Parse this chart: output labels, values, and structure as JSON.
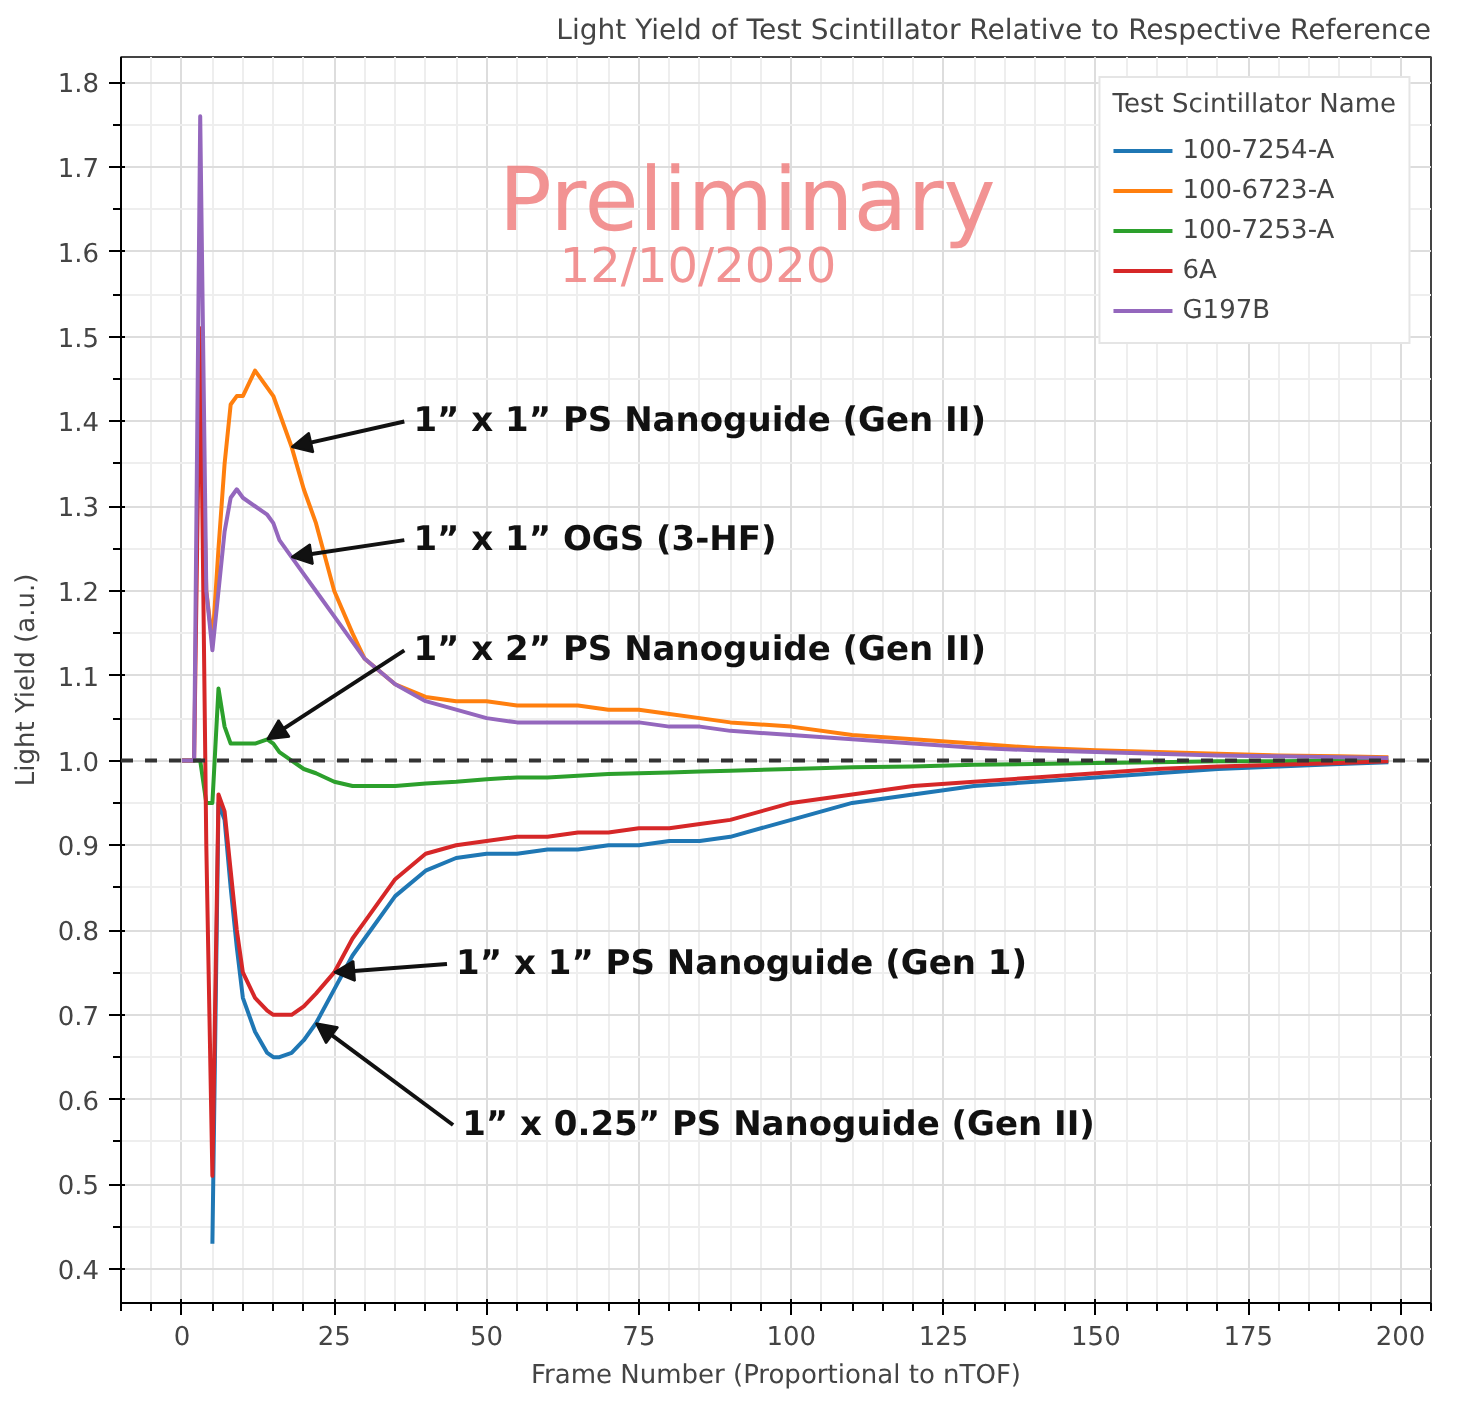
{
  "chart_data": {
    "type": "line",
    "title": "Light Yield of Test Scintillator Relative to Respective Reference",
    "xlabel": "Frame Number (Proportional to nTOF)",
    "ylabel": "Light Yield (a.u.)",
    "legend_title": "Test Scintillator Name",
    "legend": "top right",
    "grid": true,
    "x": [
      0,
      1,
      2,
      3,
      4,
      5,
      6,
      7,
      8,
      9,
      10,
      12,
      14,
      15,
      16,
      18,
      20,
      22,
      25,
      28,
      30,
      35,
      40,
      45,
      50,
      55,
      60,
      65,
      70,
      75,
      80,
      85,
      90,
      100,
      110,
      120,
      130,
      140,
      150,
      160,
      170,
      180,
      190,
      198
    ],
    "series": [
      {
        "name": "100-7254-A",
        "color": "#1f77b4",
        "values": [
          null,
          null,
          null,
          null,
          null,
          0.43,
          0.95,
          0.93,
          0.85,
          0.78,
          0.72,
          0.68,
          0.655,
          0.65,
          0.65,
          0.655,
          0.67,
          0.69,
          0.73,
          0.77,
          0.79,
          0.84,
          0.87,
          0.885,
          0.89,
          0.89,
          0.895,
          0.895,
          0.9,
          0.9,
          0.905,
          0.905,
          0.91,
          0.93,
          0.95,
          0.96,
          0.97,
          0.975,
          0.98,
          0.985,
          0.99,
          0.993,
          0.996,
          0.998
        ]
      },
      {
        "name": "100-6723-A",
        "color": "#ff7f0e",
        "values": [
          null,
          null,
          null,
          1.5,
          1.2,
          1.14,
          1.25,
          1.35,
          1.42,
          1.43,
          1.43,
          1.46,
          1.44,
          1.43,
          1.41,
          1.37,
          1.32,
          1.28,
          1.2,
          1.15,
          1.12,
          1.09,
          1.075,
          1.07,
          1.07,
          1.065,
          1.065,
          1.065,
          1.06,
          1.06,
          1.055,
          1.05,
          1.045,
          1.04,
          1.03,
          1.025,
          1.02,
          1.015,
          1.012,
          1.01,
          1.008,
          1.006,
          1.005,
          1.004
        ]
      },
      {
        "name": "100-7253-A",
        "color": "#2ca02c",
        "values": [
          1.0,
          1.0,
          1.0,
          1.0,
          0.95,
          0.95,
          1.085,
          1.04,
          1.02,
          1.02,
          1.02,
          1.02,
          1.025,
          1.02,
          1.01,
          1.0,
          0.99,
          0.985,
          0.975,
          0.97,
          0.97,
          0.97,
          0.973,
          0.975,
          0.978,
          0.98,
          0.98,
          0.982,
          0.984,
          0.985,
          0.986,
          0.987,
          0.988,
          0.99,
          0.992,
          0.993,
          0.995,
          0.996,
          0.997,
          0.998,
          0.999,
          0.999,
          1.0,
          1.0
        ]
      },
      {
        "name": "6A",
        "color": "#d62728",
        "values": [
          1.0,
          1.0,
          1.0,
          1.51,
          0.9,
          0.51,
          0.96,
          0.94,
          0.87,
          0.8,
          0.75,
          0.72,
          0.705,
          0.7,
          0.7,
          0.7,
          0.71,
          0.725,
          0.75,
          0.79,
          0.81,
          0.86,
          0.89,
          0.9,
          0.905,
          0.91,
          0.91,
          0.915,
          0.915,
          0.92,
          0.92,
          0.925,
          0.93,
          0.95,
          0.96,
          0.97,
          0.975,
          0.98,
          0.985,
          0.99,
          0.993,
          0.995,
          0.997,
          0.999
        ]
      },
      {
        "name": "G197B",
        "color": "#9467bd",
        "values": [
          1.0,
          1.0,
          1.0,
          1.76,
          1.2,
          1.13,
          1.2,
          1.27,
          1.31,
          1.32,
          1.31,
          1.3,
          1.29,
          1.28,
          1.26,
          1.24,
          1.22,
          1.2,
          1.17,
          1.14,
          1.12,
          1.09,
          1.07,
          1.06,
          1.05,
          1.045,
          1.045,
          1.045,
          1.045,
          1.045,
          1.04,
          1.04,
          1.035,
          1.03,
          1.025,
          1.02,
          1.015,
          1.012,
          1.01,
          1.008,
          1.006,
          1.005,
          1.004,
          1.003
        ]
      }
    ],
    "xlim": [
      -10,
      205
    ],
    "ylim": [
      0.36,
      1.83
    ],
    "xticks": [
      0,
      25,
      50,
      75,
      100,
      125,
      150,
      175,
      200
    ],
    "yticks": [
      {
        "value": 0.4,
        "label": "0.4"
      },
      {
        "value": 0.5,
        "label": "0.5"
      },
      {
        "value": 0.6,
        "label": "0.6"
      },
      {
        "value": 0.7,
        "label": "0.7"
      },
      {
        "value": 0.8,
        "label": "0.8"
      },
      {
        "value": 0.9,
        "label": "0.9"
      },
      {
        "value": 1.0,
        "label": "1.0"
      },
      {
        "value": 1.1,
        "label": "1.1"
      },
      {
        "value": 1.2,
        "label": "1.2"
      },
      {
        "value": 1.3,
        "label": "1.3"
      },
      {
        "value": 1.4,
        "label": "1.4"
      },
      {
        "value": 1.5,
        "label": "1.5"
      },
      {
        "value": 1.6,
        "label": "1.6"
      },
      {
        "value": 1.7,
        "label": "1.7"
      },
      {
        "value": 1.8,
        "label": "1.8"
      }
    ],
    "ref_lines": [
      {
        "axis": "y",
        "value": 1.0,
        "color": "#333333",
        "line_style": "dashed"
      }
    ],
    "annotations": [
      "Preliminary",
      "12/10/2020",
      {
        "text": "1” x 1” PS Nanoguide (Gen II)",
        "x": 18,
        "y": 1.37
      },
      {
        "text": "1” x 1” OGS (3-HF)",
        "x": 18,
        "y": 1.24
      },
      {
        "text": "1” x 2” PS Nanoguide (Gen II)",
        "x": 14,
        "y": 1.025
      },
      {
        "text": "1” x 1” PS Nanoguide (Gen 1)",
        "x": 25,
        "y": 0.75
      },
      {
        "text": "1” x 0.25” PS Nanoguide (Gen II)",
        "x": 22,
        "y": 0.69
      }
    ]
  }
}
